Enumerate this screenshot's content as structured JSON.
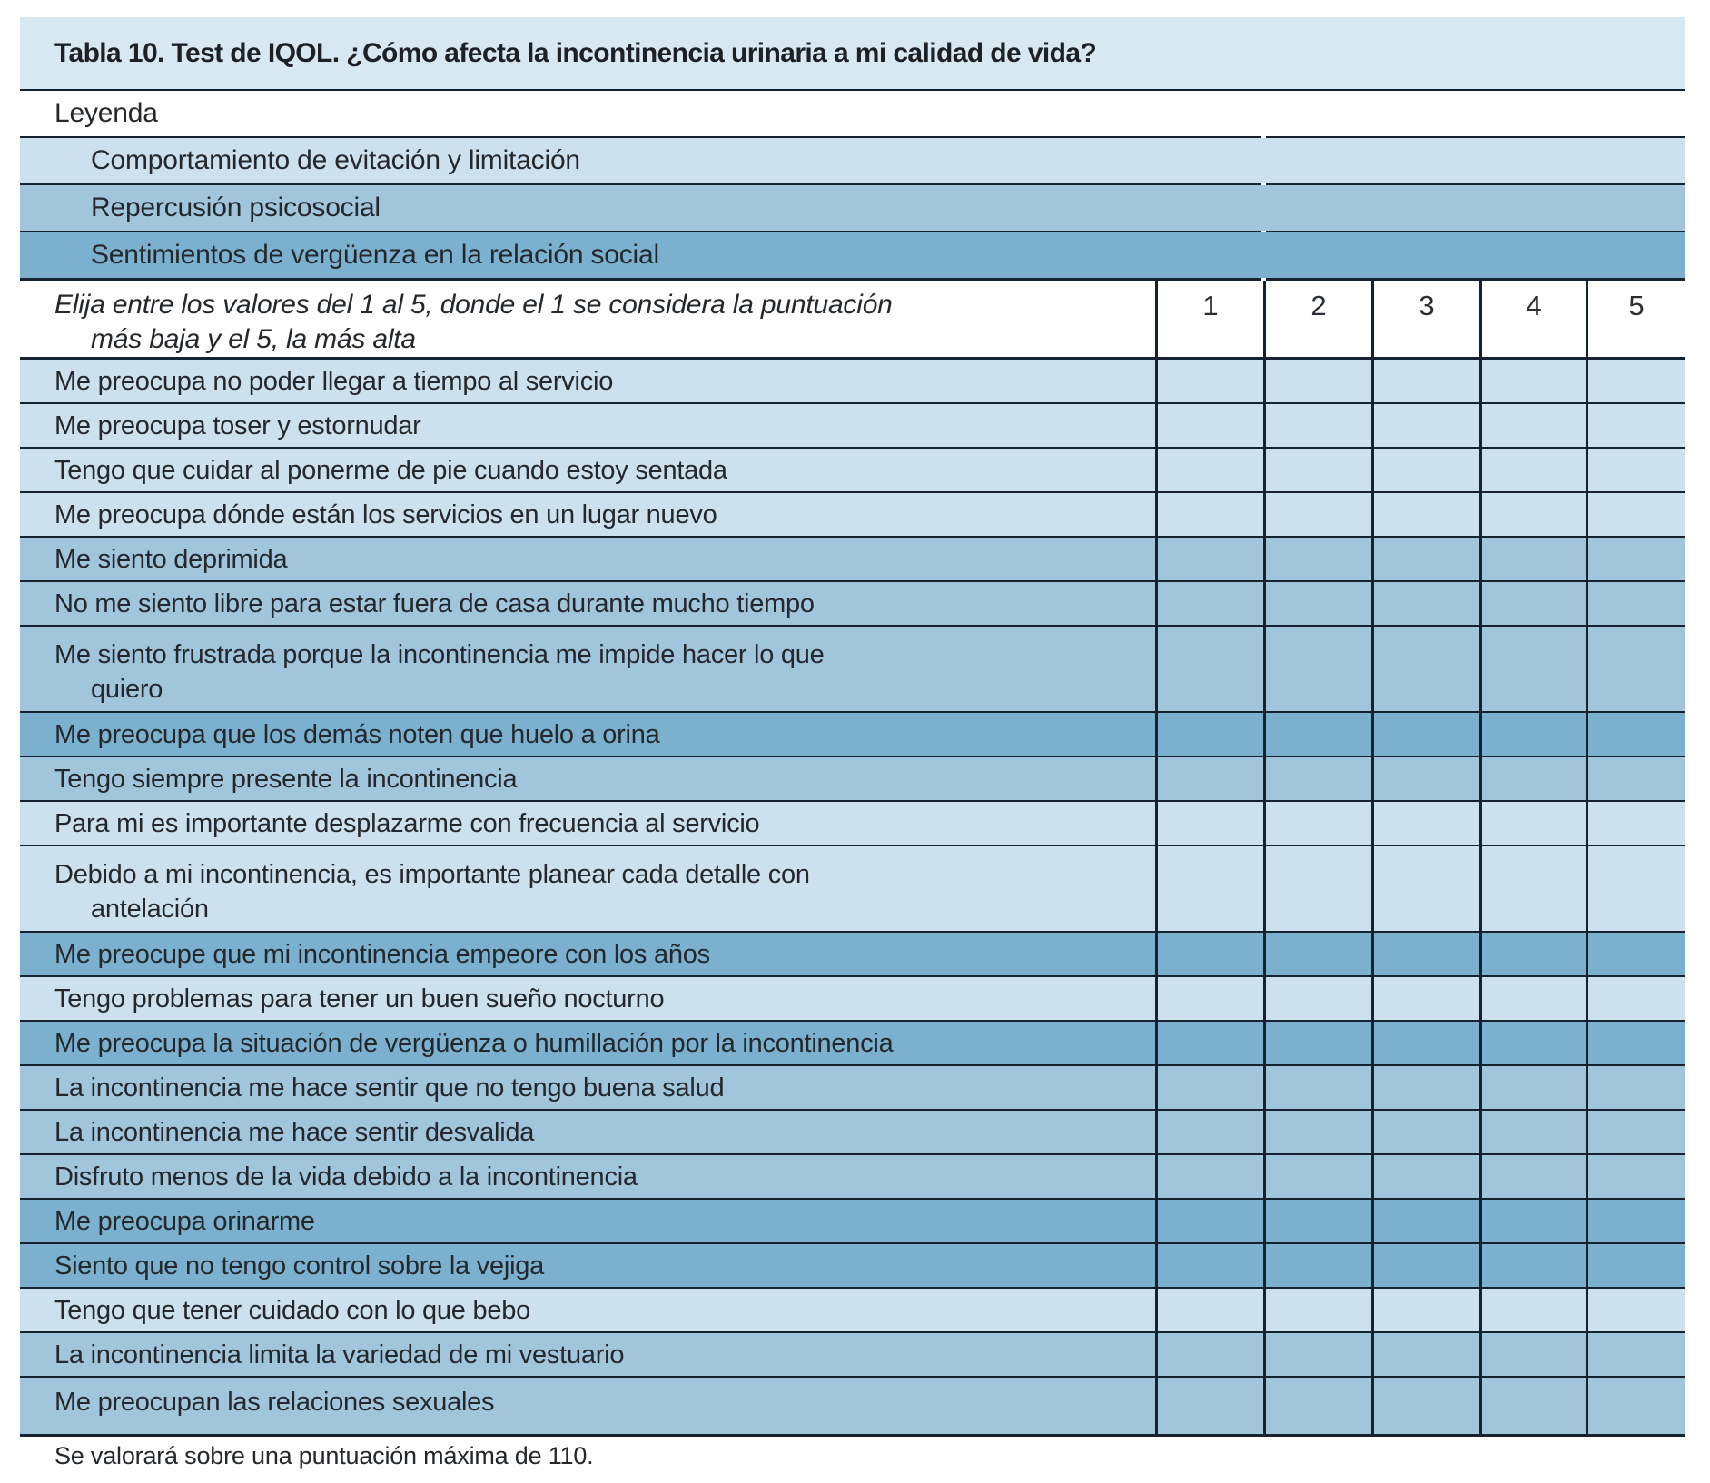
{
  "table": {
    "title": "Tabla 10. Test de IQOL. ¿Cómo afecta la incontinencia urinaria a mi calidad de vida?",
    "legend": {
      "heading": "Leyenda",
      "items": [
        {
          "label": "Comportamiento de evitación y limitación",
          "shade": "light",
          "color": "#cde0ed"
        },
        {
          "label": "Repercusión psicosocial",
          "shade": "medium",
          "color": "#a1c5db"
        },
        {
          "label": "Sentimientos de vergüenza en la relación social",
          "shade": "dark",
          "color": "#7bb1ce"
        }
      ]
    },
    "instruction": {
      "line1": "Elija entre los valores del 1 al 5, donde el 1 se considera la puntuación",
      "line2": "más baja y el 5, la más alta"
    },
    "scale_headers": [
      "1",
      "2",
      "3",
      "4",
      "5"
    ],
    "rows": [
      {
        "text": "Me preocupa no poder llegar a tiempo al servicio",
        "shade": "light"
      },
      {
        "text": "Me preocupa toser y estornudar",
        "shade": "light"
      },
      {
        "text": "Tengo que cuidar al ponerme de pie cuando estoy sentada",
        "shade": "light"
      },
      {
        "text": "Me preocupa dónde están los servicios en un lugar nuevo",
        "shade": "light"
      },
      {
        "text": "Me siento deprimida",
        "shade": "medium"
      },
      {
        "text": "No me siento libre para estar fuera de casa durante mucho tiempo",
        "shade": "medium"
      },
      {
        "text": "Me siento frustrada porque la incontinencia me impide hacer lo que",
        "text2": "quiero",
        "shade": "medium"
      },
      {
        "text": "Me preocupa que los demás noten que huelo a orina",
        "shade": "dark"
      },
      {
        "text": "Tengo siempre presente la incontinencia",
        "shade": "medium"
      },
      {
        "text": "Para mi es importante desplazarme con frecuencia al servicio",
        "shade": "light"
      },
      {
        "text": "Debido a mi incontinencia, es importante planear cada detalle con",
        "text2": "antelación",
        "shade": "light"
      },
      {
        "text": "Me preocupe que mi incontinencia empeore con los años",
        "shade": "dark"
      },
      {
        "text": "Tengo problemas para tener un buen sueño nocturno",
        "shade": "light"
      },
      {
        "text": "Me preocupa la situación de vergüenza o humillación por la incontinencia",
        "shade": "dark"
      },
      {
        "text": "La incontinencia me hace sentir que no tengo buena salud",
        "shade": "medium"
      },
      {
        "text": "La incontinencia me hace sentir desvalida",
        "shade": "medium"
      },
      {
        "text": "Disfruto menos de la vida debido a la incontinencia",
        "shade": "medium"
      },
      {
        "text": "Me preocupa orinarme",
        "shade": "dark"
      },
      {
        "text": "Siento que no tengo control sobre la vejiga",
        "shade": "dark"
      },
      {
        "text": "Tengo que tener cuidado con lo que bebo",
        "shade": "light"
      },
      {
        "text": "La incontinencia limita la variedad de mi vestuario",
        "shade": "medium"
      },
      {
        "text": "Me preocupan las relaciones sexuales",
        "shade": "medium"
      }
    ],
    "footer": "Se valorará sobre una puntuación máxima de 110."
  },
  "colors": {
    "title_bar": "#d8e8f2",
    "row_light": "#cde0ed",
    "row_medium": "#a1c5db",
    "row_dark": "#7bb1ce",
    "border": "#16222d",
    "text": "#24282c"
  }
}
